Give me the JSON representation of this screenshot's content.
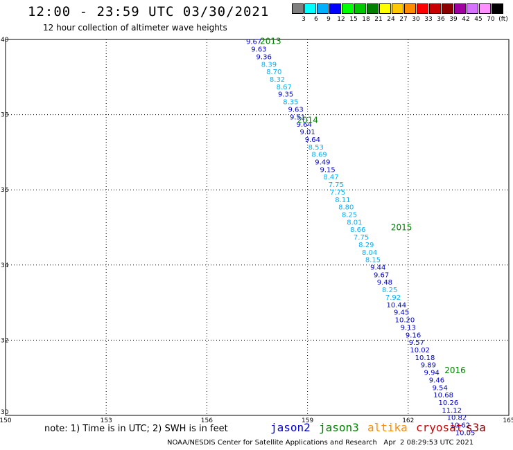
{
  "header": {
    "title": "12:00 - 23:59 UTC 03/30/2021",
    "subtitle": "12 hour collection of altimeter wave heights"
  },
  "color_scale": {
    "labels": [
      "3",
      "6",
      "9",
      "12",
      "15",
      "18",
      "21",
      "24",
      "27",
      "30",
      "33",
      "36",
      "39",
      "42",
      "45",
      "70",
      "(ft)"
    ],
    "colors": [
      "#7f7f7f",
      "#00ffff",
      "#00b0ff",
      "#0000ff",
      "#00ff00",
      "#00c800",
      "#008000",
      "#ffff00",
      "#ffc800",
      "#ff8c00",
      "#ff0000",
      "#c80000",
      "#8b0000",
      "#a000a0",
      "#d870ff",
      "#ff90ff",
      "#000000"
    ]
  },
  "footer": {
    "note": "note: 1) Time is in UTC; 2) SWH is in feet",
    "legend": [
      {
        "name": "jason2",
        "color": "#0000cc"
      },
      {
        "name": "jason3",
        "color": "#008000"
      },
      {
        "name": "altika",
        "color": "#ff8c00"
      },
      {
        "name": "cryosat",
        "color": "#cc0000"
      },
      {
        "name": "s3a",
        "color": "#800000"
      }
    ],
    "credit": "NOAA/NESDIS Center for Satellite Applications and Research   Apr  2 08:29:53 UTC 2021"
  },
  "chart_data": {
    "type": "scatter",
    "xlim": [
      150,
      165
    ],
    "ylim": [
      30,
      40
    ],
    "x_ticks": [
      "150",
      "153",
      "156",
      "159",
      "162",
      "165"
    ],
    "y_ticks": [
      "30",
      "32",
      "34",
      "36",
      "38",
      "40"
    ],
    "grid": true,
    "points": [
      {
        "lon": 157.4,
        "lat": 39.95,
        "label": "9.67",
        "sat": "jason2"
      },
      {
        "lon": 157.55,
        "lat": 39.75,
        "label": "9.63",
        "sat": "jason2"
      },
      {
        "lon": 157.7,
        "lat": 39.55,
        "label": "9.36",
        "sat": "jason2"
      },
      {
        "lon": 157.85,
        "lat": 39.35,
        "label": "8.39",
        "sat": "jason2l"
      },
      {
        "lon": 158.0,
        "lat": 39.15,
        "label": "8.70",
        "sat": "jason2l"
      },
      {
        "lon": 158.1,
        "lat": 38.95,
        "label": "8.32",
        "sat": "jason2l"
      },
      {
        "lon": 158.3,
        "lat": 38.75,
        "label": "8.67",
        "sat": "jason2l"
      },
      {
        "lon": 158.35,
        "lat": 38.55,
        "label": "9.35",
        "sat": "jason2"
      },
      {
        "lon": 158.5,
        "lat": 38.35,
        "label": "8.35",
        "sat": "jason2l"
      },
      {
        "lon": 158.65,
        "lat": 38.15,
        "label": "9.63",
        "sat": "jason2"
      },
      {
        "lon": 158.7,
        "lat": 37.95,
        "label": "9.51",
        "sat": "jason2"
      },
      {
        "lon": 158.9,
        "lat": 37.75,
        "label": "9.64",
        "sat": "jason2"
      },
      {
        "lon": 159.0,
        "lat": 37.55,
        "label": "9.01",
        "sat": "jason2"
      },
      {
        "lon": 159.15,
        "lat": 37.35,
        "label": "9.64",
        "sat": "jason2"
      },
      {
        "lon": 159.25,
        "lat": 37.15,
        "label": "8.53",
        "sat": "jason2l"
      },
      {
        "lon": 159.35,
        "lat": 36.95,
        "label": "8.69",
        "sat": "jason2l"
      },
      {
        "lon": 159.45,
        "lat": 36.75,
        "label": "9.49",
        "sat": "jason2"
      },
      {
        "lon": 159.6,
        "lat": 36.55,
        "label": "9.15",
        "sat": "jason2"
      },
      {
        "lon": 159.7,
        "lat": 36.35,
        "label": "8.47",
        "sat": "jason2l"
      },
      {
        "lon": 159.85,
        "lat": 36.15,
        "label": "7.75",
        "sat": "jason2l"
      },
      {
        "lon": 159.9,
        "lat": 35.95,
        "label": "7.75",
        "sat": "jason2l"
      },
      {
        "lon": 160.05,
        "lat": 35.75,
        "label": "8.11",
        "sat": "jason2l"
      },
      {
        "lon": 160.15,
        "lat": 35.55,
        "label": "8.80",
        "sat": "jason2l"
      },
      {
        "lon": 160.25,
        "lat": 35.35,
        "label": "8.25",
        "sat": "jason2l"
      },
      {
        "lon": 160.4,
        "lat": 35.15,
        "label": "8.01",
        "sat": "jason2l"
      },
      {
        "lon": 160.5,
        "lat": 34.95,
        "label": "8.66",
        "sat": "jason2l"
      },
      {
        "lon": 160.6,
        "lat": 34.75,
        "label": "7.75",
        "sat": "jason2l"
      },
      {
        "lon": 160.75,
        "lat": 34.55,
        "label": "8.29",
        "sat": "jason2l"
      },
      {
        "lon": 160.85,
        "lat": 34.35,
        "label": "8.04",
        "sat": "jason2l"
      },
      {
        "lon": 160.95,
        "lat": 34.15,
        "label": "8.15",
        "sat": "jason2l"
      },
      {
        "lon": 161.1,
        "lat": 33.95,
        "label": "9.44",
        "sat": "jason2"
      },
      {
        "lon": 161.2,
        "lat": 33.75,
        "label": "9.67",
        "sat": "jason2"
      },
      {
        "lon": 161.3,
        "lat": 33.55,
        "label": "9.48",
        "sat": "jason2"
      },
      {
        "lon": 161.45,
        "lat": 33.35,
        "label": "8.25",
        "sat": "jason2l"
      },
      {
        "lon": 161.55,
        "lat": 33.15,
        "label": "7.92",
        "sat": "jason2l"
      },
      {
        "lon": 161.65,
        "lat": 32.95,
        "label": "10.44",
        "sat": "jason2"
      },
      {
        "lon": 161.8,
        "lat": 32.75,
        "label": "9.45",
        "sat": "jason2"
      },
      {
        "lon": 161.9,
        "lat": 32.55,
        "label": "10.20",
        "sat": "jason2"
      },
      {
        "lon": 162.0,
        "lat": 32.35,
        "label": "9.13",
        "sat": "jason2"
      },
      {
        "lon": 162.15,
        "lat": 32.15,
        "label": "9.16",
        "sat": "jason2"
      },
      {
        "lon": 162.25,
        "lat": 31.95,
        "label": "9.57",
        "sat": "jason2"
      },
      {
        "lon": 162.35,
        "lat": 31.75,
        "label": "10.02",
        "sat": "jason2"
      },
      {
        "lon": 162.5,
        "lat": 31.55,
        "label": "10.18",
        "sat": "jason2"
      },
      {
        "lon": 162.6,
        "lat": 31.35,
        "label": "9.89",
        "sat": "jason2"
      },
      {
        "lon": 162.7,
        "lat": 31.15,
        "label": "9.94",
        "sat": "jason2"
      },
      {
        "lon": 162.85,
        "lat": 30.95,
        "label": "9.46",
        "sat": "jason2"
      },
      {
        "lon": 162.95,
        "lat": 30.75,
        "label": "9.54",
        "sat": "jason2"
      },
      {
        "lon": 163.05,
        "lat": 30.55,
        "label": "10.68",
        "sat": "jason2"
      },
      {
        "lon": 163.2,
        "lat": 30.35,
        "label": "10.26",
        "sat": "jason2"
      },
      {
        "lon": 163.3,
        "lat": 30.15,
        "label": "11.12",
        "sat": "jason2"
      },
      {
        "lon": 163.45,
        "lat": 29.95,
        "label": "10.82",
        "sat": "jason2"
      },
      {
        "lon": 163.55,
        "lat": 29.75,
        "label": "10.62",
        "sat": "jason2"
      },
      {
        "lon": 163.7,
        "lat": 29.55,
        "label": "10.05",
        "sat": "jason2"
      }
    ],
    "time_markers": [
      {
        "lon": 157.9,
        "lat": 39.95,
        "label": "2013"
      },
      {
        "lon": 159.0,
        "lat": 37.85,
        "label": "2014"
      },
      {
        "lon": 161.8,
        "lat": 35.0,
        "label": "2015"
      },
      {
        "lon": 163.4,
        "lat": 31.2,
        "label": "2016"
      }
    ],
    "point_colors": {
      "jason2": "#0000cc",
      "jason2l": "#00b0ff",
      "marker": "#008000"
    }
  }
}
